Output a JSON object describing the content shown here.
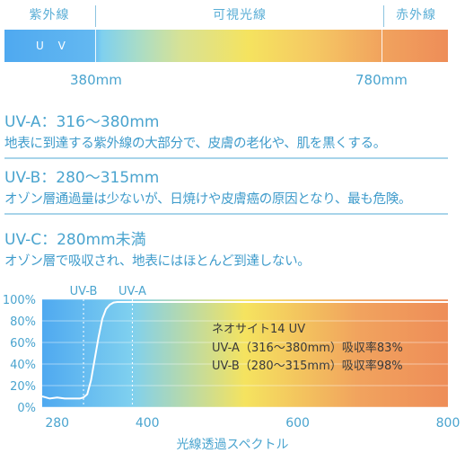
{
  "bands": {
    "violet_label": "紫外線",
    "visible_label": "可視光線",
    "infrared_label": "赤外線",
    "uv_label": "U V",
    "left_wavelength": "380mm",
    "right_wavelength": "780mm"
  },
  "sections": [
    {
      "title": "UV-A：316～380mm",
      "body": "地表に到達する紫外線の大部分で、皮膚の老化や、肌を黒くする。"
    },
    {
      "title": "UV-B：280～315mm",
      "body": "オゾン層通過量は少ないが、日焼けや皮膚癌の原因となり、最も危険。"
    },
    {
      "title": "UV-C：280mm未満",
      "body": "オゾン層で吸収され、地表にはほとんど到達しない。"
    }
  ],
  "chart_data": {
    "type": "line",
    "xlabel": "光線透過スペクトル",
    "ylabel": "",
    "xlim": [
      260,
      800
    ],
    "ylim": [
      0,
      100
    ],
    "x_ticks": [
      280,
      400,
      600,
      800
    ],
    "y_ticks": [
      "0%",
      "20%",
      "40%",
      "60%",
      "80%",
      "100%"
    ],
    "y_tick_values": [
      0,
      20,
      40,
      60,
      80,
      100
    ],
    "markers": [
      {
        "label": "UV-B",
        "x": 315
      },
      {
        "label": "UV-A",
        "x": 380
      }
    ],
    "series": [
      {
        "name": "",
        "x": [
          260,
          270,
          280,
          290,
          300,
          310,
          315,
          320,
          325,
          330,
          335,
          340,
          345,
          350,
          355,
          360,
          370,
          380,
          400,
          500,
          600,
          700,
          800
        ],
        "values": [
          10,
          8,
          9,
          8,
          8,
          8,
          9,
          12,
          25,
          45,
          65,
          82,
          91,
          95,
          97,
          97.5,
          97.5,
          97.5,
          97.5,
          97.5,
          97.5,
          97.5,
          97.5
        ]
      }
    ],
    "annotation": {
      "title": "ネオサイト14 UV",
      "line1": "UV-A（316～380mm）吸収率83%",
      "line2": "UV-B（280～315mm）吸収率98%"
    },
    "gradient_colors": [
      "#4fa9f0",
      "#7fd0ef",
      "#f5e35f",
      "#f1a35e",
      "#ee8d58"
    ]
  }
}
